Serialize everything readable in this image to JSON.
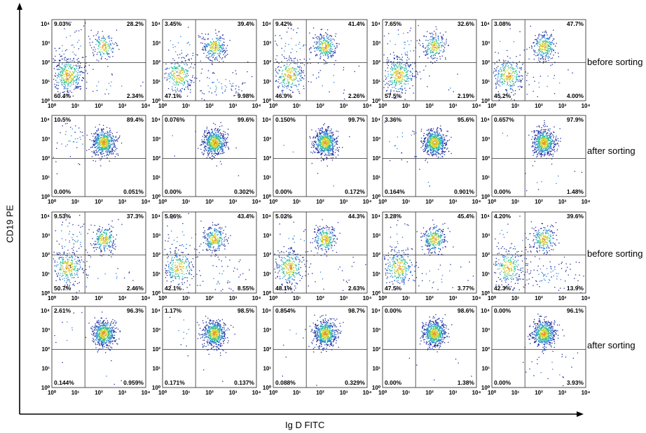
{
  "chart_data": {
    "type": "scatter",
    "xlabel": "Ig D FITC",
    "ylabel": "CD19 PE",
    "tick_labels": [
      "10⁰",
      "10¹",
      "10²",
      "10³",
      "10⁴"
    ],
    "y_tick_labels": [
      "10⁰",
      "10¹",
      "10²",
      "10³",
      "10⁴"
    ],
    "row_labels": [
      "before sorting",
      "after sorting",
      "before sorting",
      "after sorting"
    ],
    "xlim": [
      0,
      4
    ],
    "ylim": [
      0,
      4
    ],
    "density_colors": [
      "#1a2a9c",
      "#2a7fd4",
      "#2fbf9a",
      "#d4d12a",
      "#e8931e"
    ],
    "panels": [
      {
        "row": 0,
        "col": 0,
        "quadrants": {
          "upper_left": "9.03%",
          "upper_right": "28.2%",
          "lower_left": "60.4%",
          "lower_right": "2.34%"
        }
      },
      {
        "row": 0,
        "col": 1,
        "quadrants": {
          "upper_left": "3.45%",
          "upper_right": "39.4%",
          "lower_left": "47.1%",
          "lower_right": "9.98%"
        }
      },
      {
        "row": 0,
        "col": 2,
        "quadrants": {
          "upper_left": "9.42%",
          "upper_right": "41.4%",
          "lower_left": "46.9%",
          "lower_right": "2.26%"
        }
      },
      {
        "row": 0,
        "col": 3,
        "quadrants": {
          "upper_left": "7.65%",
          "upper_right": "32.6%",
          "lower_left": "57.5%",
          "lower_right": "2.19%"
        }
      },
      {
        "row": 0,
        "col": 4,
        "quadrants": {
          "upper_left": "3.08%",
          "upper_right": "47.7%",
          "lower_left": "45.2%",
          "lower_right": "4.00%"
        }
      },
      {
        "row": 1,
        "col": 0,
        "quadrants": {
          "upper_left": "10.5%",
          "upper_right": "89.4%",
          "lower_left": "0.00%",
          "lower_right": "0.051%"
        }
      },
      {
        "row": 1,
        "col": 1,
        "quadrants": {
          "upper_left": "0.076%",
          "upper_right": "99.6%",
          "lower_left": "0.00%",
          "lower_right": "0.302%"
        }
      },
      {
        "row": 1,
        "col": 2,
        "quadrants": {
          "upper_left": "0.150%",
          "upper_right": "99.7%",
          "lower_left": "0.00%",
          "lower_right": "0.172%"
        }
      },
      {
        "row": 1,
        "col": 3,
        "quadrants": {
          "upper_left": "3.36%",
          "upper_right": "95.6%",
          "lower_left": "0.164%",
          "lower_right": "0.901%"
        }
      },
      {
        "row": 1,
        "col": 4,
        "quadrants": {
          "upper_left": "0.657%",
          "upper_right": "97.9%",
          "lower_left": "0.00%",
          "lower_right": "1.48%"
        }
      },
      {
        "row": 2,
        "col": 0,
        "quadrants": {
          "upper_left": "9.53%",
          "upper_right": "37.3%",
          "lower_left": "50.7%",
          "lower_right": "2.46%"
        }
      },
      {
        "row": 2,
        "col": 1,
        "quadrants": {
          "upper_left": "5.96%",
          "upper_right": "43.4%",
          "lower_left": "42.1%",
          "lower_right": "8.55%"
        }
      },
      {
        "row": 2,
        "col": 2,
        "quadrants": {
          "upper_left": "5.02%",
          "upper_right": "44.3%",
          "lower_left": "48.1%",
          "lower_right": "2.63%"
        }
      },
      {
        "row": 2,
        "col": 3,
        "quadrants": {
          "upper_left": "3.28%",
          "upper_right": "45.4%",
          "lower_left": "47.5%",
          "lower_right": "3.77%"
        }
      },
      {
        "row": 2,
        "col": 4,
        "quadrants": {
          "upper_left": "4.20%",
          "upper_right": "39.6%",
          "lower_left": "42.3%",
          "lower_right": "13.9%"
        }
      },
      {
        "row": 3,
        "col": 0,
        "quadrants": {
          "upper_left": "2.61%",
          "upper_right": "96.3%",
          "lower_left": "0.144%",
          "lower_right": "0.959%"
        }
      },
      {
        "row": 3,
        "col": 1,
        "quadrants": {
          "upper_left": "1.17%",
          "upper_right": "98.5%",
          "lower_left": "0.171%",
          "lower_right": "0.137%"
        }
      },
      {
        "row": 3,
        "col": 2,
        "quadrants": {
          "upper_left": "0.854%",
          "upper_right": "98.7%",
          "lower_left": "0.088%",
          "lower_right": "0.329%"
        }
      },
      {
        "row": 3,
        "col": 3,
        "quadrants": {
          "upper_left": "0.00%",
          "upper_right": "98.6%",
          "lower_left": "0.00%",
          "lower_right": "1.38%"
        }
      },
      {
        "row": 3,
        "col": 4,
        "quadrants": {
          "upper_left": "0.00%",
          "upper_right": "96.1%",
          "lower_left": "0.00%",
          "lower_right": "3.93%"
        }
      }
    ]
  }
}
